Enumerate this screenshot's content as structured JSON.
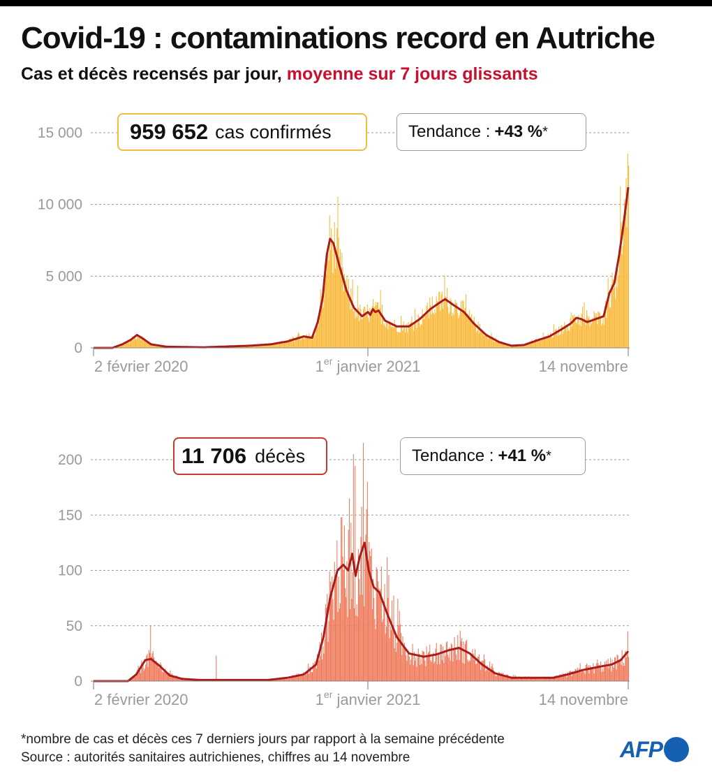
{
  "title": "Covid-19 : contaminations record en Autriche",
  "subtitle": {
    "main": "Cas et décès recensés par jour, ",
    "highlight": "moyenne sur 7 jours glissants"
  },
  "colors": {
    "cases_bars": "#f9b93b",
    "deaths_bars": "#ef7a5b",
    "average_line": "#a81c1c",
    "cases_box_border": "#f2bc3c",
    "deaths_box_border": "#c33a2e",
    "highlight": "#c8102e",
    "afp_blue": "#1560b3"
  },
  "cases_box": {
    "value": "959 652",
    "label": "cas confirmés"
  },
  "cases_trend": {
    "label": "Tendance : ",
    "value": "+43 %",
    "star": "*"
  },
  "deaths_box": {
    "value": "11 706",
    "label": "décès"
  },
  "deaths_trend": {
    "label": "Tendance : ",
    "value": "+41 %",
    "star": "*"
  },
  "footnote": "*nombre de cas et décès ces 7 derniers jours par rapport à la semaine précédente",
  "source": "Source : autorités sanitaires autrichienes, chiffres au 14 novembre",
  "logo": "AFP",
  "chart_data": [
    {
      "type": "bar",
      "name": "cas",
      "ylim": [
        0,
        15000
      ],
      "y_ticks": [
        {
          "value": 0,
          "label": "0"
        },
        {
          "value": 5000,
          "label": "5 000"
        },
        {
          "value": 10000,
          "label": "10 000"
        },
        {
          "value": 15000,
          "label": "15 000"
        }
      ],
      "x_ticks": [
        {
          "date": "2020-02-02",
          "label": "2 février 2020"
        },
        {
          "date": "2021-01-01",
          "label": "1er janvier 2021",
          "sup": "er",
          "base": "1",
          "rest": " janvier 2021"
        },
        {
          "date": "2021-11-14",
          "label": "14 novembre"
        }
      ],
      "xlim": [
        "2020-02-02",
        "2021-11-14"
      ],
      "average_key": [
        [
          "2020-02-02",
          0
        ],
        [
          "2020-02-25",
          0
        ],
        [
          "2020-03-08",
          250
        ],
        [
          "2020-03-18",
          550
        ],
        [
          "2020-03-26",
          900
        ],
        [
          "2020-04-02",
          650
        ],
        [
          "2020-04-12",
          250
        ],
        [
          "2020-05-01",
          80
        ],
        [
          "2020-06-15",
          40
        ],
        [
          "2020-07-10",
          90
        ],
        [
          "2020-08-10",
          150
        ],
        [
          "2020-09-05",
          250
        ],
        [
          "2020-09-25",
          450
        ],
        [
          "2020-10-15",
          800
        ],
        [
          "2020-10-25",
          700
        ],
        [
          "2020-11-01",
          1800
        ],
        [
          "2020-11-07",
          3500
        ],
        [
          "2020-11-12",
          6500
        ],
        [
          "2020-11-16",
          7600
        ],
        [
          "2020-11-20",
          7300
        ],
        [
          "2020-11-27",
          5800
        ],
        [
          "2020-12-06",
          4000
        ],
        [
          "2020-12-15",
          2800
        ],
        [
          "2020-12-25",
          2200
        ],
        [
          "2021-01-01",
          2500
        ],
        [
          "2021-01-04",
          2300
        ],
        [
          "2021-01-07",
          2700
        ],
        [
          "2021-01-10",
          2500
        ],
        [
          "2021-01-14",
          2600
        ],
        [
          "2021-01-22",
          1900
        ],
        [
          "2021-02-05",
          1500
        ],
        [
          "2021-02-20",
          1500
        ],
        [
          "2021-03-05",
          2000
        ],
        [
          "2021-03-18",
          2700
        ],
        [
          "2021-03-28",
          3100
        ],
        [
          "2021-04-05",
          3400
        ],
        [
          "2021-04-15",
          3000
        ],
        [
          "2021-04-28",
          2500
        ],
        [
          "2021-05-10",
          1700
        ],
        [
          "2021-05-25",
          900
        ],
        [
          "2021-06-10",
          400
        ],
        [
          "2021-06-25",
          150
        ],
        [
          "2021-07-10",
          200
        ],
        [
          "2021-07-25",
          500
        ],
        [
          "2021-08-10",
          800
        ],
        [
          "2021-08-25",
          1300
        ],
        [
          "2021-09-05",
          1700
        ],
        [
          "2021-09-12",
          2100
        ],
        [
          "2021-09-18",
          2000
        ],
        [
          "2021-09-25",
          1800
        ],
        [
          "2021-10-05",
          2000
        ],
        [
          "2021-10-15",
          2200
        ],
        [
          "2021-10-22",
          3800
        ],
        [
          "2021-10-28",
          4500
        ],
        [
          "2021-11-03",
          6500
        ],
        [
          "2021-11-08",
          8500
        ],
        [
          "2021-11-14",
          11200
        ]
      ]
    },
    {
      "type": "bar",
      "name": "décès",
      "ylim": [
        0,
        200
      ],
      "y_ticks": [
        {
          "value": 0,
          "label": "0"
        },
        {
          "value": 50,
          "label": "50"
        },
        {
          "value": 100,
          "label": "100"
        },
        {
          "value": 150,
          "label": "150"
        },
        {
          "value": 200,
          "label": "200"
        }
      ],
      "x_ticks": [
        {
          "date": "2020-02-02",
          "label": "2 février 2020"
        },
        {
          "date": "2021-01-01",
          "label": "1er janvier 2021",
          "sup": "er",
          "base": "1",
          "rest": " janvier 2021"
        },
        {
          "date": "2021-11-14",
          "label": "14 novembre"
        }
      ],
      "xlim": [
        "2020-02-02",
        "2021-11-14"
      ],
      "average_key": [
        [
          "2020-02-02",
          0
        ],
        [
          "2020-03-15",
          0
        ],
        [
          "2020-03-25",
          6
        ],
        [
          "2020-04-05",
          19
        ],
        [
          "2020-04-12",
          20
        ],
        [
          "2020-04-22",
          14
        ],
        [
          "2020-05-05",
          5
        ],
        [
          "2020-05-20",
          2
        ],
        [
          "2020-06-10",
          1
        ],
        [
          "2020-09-01",
          1
        ],
        [
          "2020-09-25",
          3
        ],
        [
          "2020-10-15",
          6
        ],
        [
          "2020-10-30",
          15
        ],
        [
          "2020-11-08",
          40
        ],
        [
          "2020-11-16",
          75
        ],
        [
          "2020-11-25",
          100
        ],
        [
          "2020-12-02",
          105
        ],
        [
          "2020-12-08",
          100
        ],
        [
          "2020-12-13",
          115
        ],
        [
          "2020-12-17",
          95
        ],
        [
          "2020-12-22",
          112
        ],
        [
          "2020-12-28",
          125
        ],
        [
          "2021-01-02",
          100
        ],
        [
          "2021-01-08",
          85
        ],
        [
          "2021-01-15",
          80
        ],
        [
          "2021-01-25",
          60
        ],
        [
          "2021-02-05",
          40
        ],
        [
          "2021-02-20",
          25
        ],
        [
          "2021-03-10",
          22
        ],
        [
          "2021-03-25",
          24
        ],
        [
          "2021-04-10",
          28
        ],
        [
          "2021-04-22",
          30
        ],
        [
          "2021-05-05",
          25
        ],
        [
          "2021-05-20",
          15
        ],
        [
          "2021-06-05",
          7
        ],
        [
          "2021-06-25",
          3
        ],
        [
          "2021-08-15",
          3
        ],
        [
          "2021-09-01",
          6
        ],
        [
          "2021-09-20",
          10
        ],
        [
          "2021-10-10",
          13
        ],
        [
          "2021-10-25",
          15
        ],
        [
          "2021-11-05",
          19
        ],
        [
          "2021-11-14",
          27
        ]
      ],
      "spikes": [
        [
          "2020-04-11",
          50
        ],
        [
          "2020-06-30",
          23
        ],
        [
          "2020-12-09",
          165
        ],
        [
          "2020-12-14",
          205
        ],
        [
          "2020-12-26",
          215
        ],
        [
          "2020-12-31",
          180
        ],
        [
          "2021-01-20",
          72
        ],
        [
          "2021-11-13",
          45
        ]
      ]
    }
  ]
}
